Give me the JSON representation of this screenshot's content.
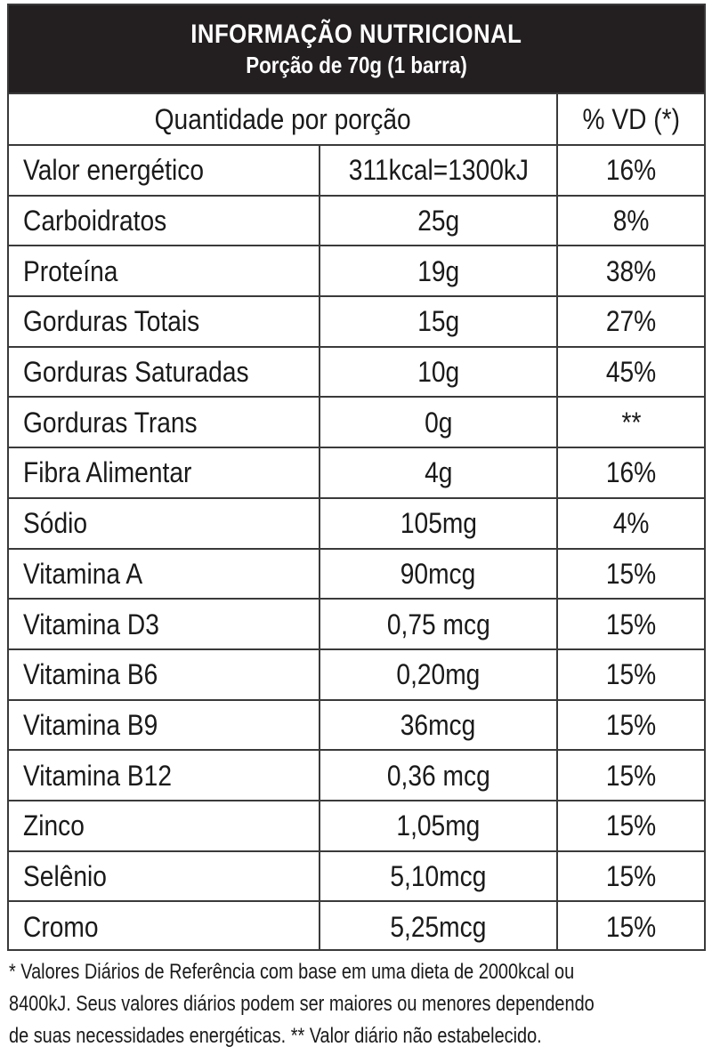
{
  "header": {
    "title": "INFORMAÇÃO NUTRICIONAL",
    "serving": "Porção de 70g (1 barra)"
  },
  "columns": {
    "quantity_header": "Quantidade por porção",
    "dv_header": "% VD (*)"
  },
  "rows": [
    {
      "name": "Valor energético",
      "amount": "311kcal=1300kJ",
      "dv": "16%"
    },
    {
      "name": "Carboidratos",
      "amount": "25g",
      "dv": "8%"
    },
    {
      "name": "Proteína",
      "amount": "19g",
      "dv": "38%"
    },
    {
      "name": "Gorduras Totais",
      "amount": "15g",
      "dv": "27%"
    },
    {
      "name": "Gorduras Saturadas",
      "amount": "10g",
      "dv": "45%"
    },
    {
      "name": "Gorduras Trans",
      "amount": "0g",
      "dv": "**"
    },
    {
      "name": "Fibra Alimentar",
      "amount": "4g",
      "dv": "16%"
    },
    {
      "name": "Sódio",
      "amount": "105mg",
      "dv": "4%"
    },
    {
      "name": "Vitamina A",
      "amount": "90mcg",
      "dv": "15%"
    },
    {
      "name": "Vitamina D3",
      "amount": "0,75 mcg",
      "dv": "15%"
    },
    {
      "name": "Vitamina B6",
      "amount": "0,20mg",
      "dv": "15%"
    },
    {
      "name": "Vitamina B9",
      "amount": "36mcg",
      "dv": "15%"
    },
    {
      "name": "Vitamina B12",
      "amount": "0,36 mcg",
      "dv": "15%"
    },
    {
      "name": "Zinco",
      "amount": "1,05mg",
      "dv": "15%"
    },
    {
      "name": "Selênio",
      "amount": "5,10mcg",
      "dv": "15%"
    },
    {
      "name": "Cromo",
      "amount": "5,25mcg",
      "dv": "15%"
    }
  ],
  "footnote": {
    "line1": "* Valores Diários de Referência com base em uma dieta de 2000kcal ou",
    "line2": "8400kJ. Seus valores diários podem ser maiores ou menores dependendo",
    "line3": "de suas necessidades energéticas. ** Valor diário não estabelecido."
  }
}
